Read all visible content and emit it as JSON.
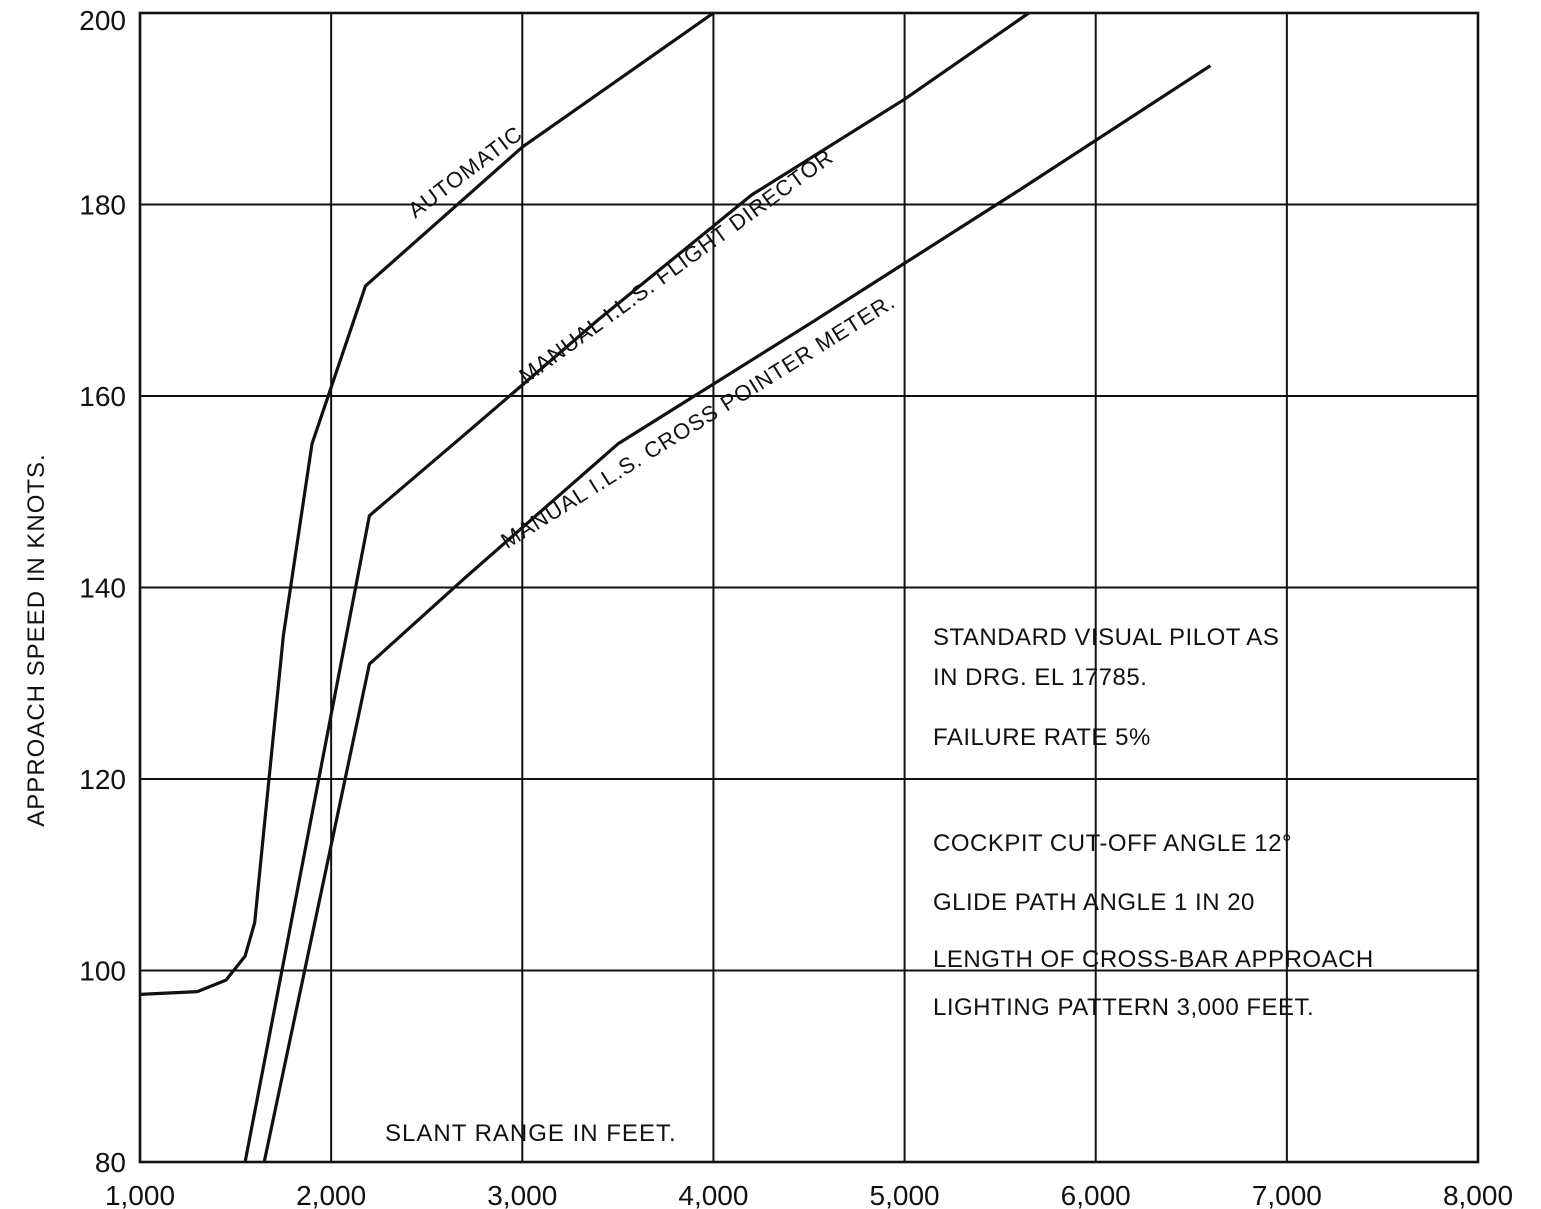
{
  "chart_data": {
    "type": "line",
    "xlabel": "SLANT RANGE IN FEET.",
    "ylabel": "APPROACH SPEED IN KNOTS.",
    "xlim": [
      1000,
      8000
    ],
    "ylim": [
      80,
      200
    ],
    "x_ticks": [
      1000,
      2000,
      3000,
      4000,
      5000,
      6000,
      7000,
      8000
    ],
    "x_tick_labels": [
      "1,000",
      "2,000",
      "3,000",
      "4,000",
      "5,000",
      "6,000",
      "7,000",
      "8,000"
    ],
    "y_ticks": [
      80,
      100,
      120,
      140,
      160,
      180,
      200
    ],
    "y_tick_labels": [
      "80",
      "100",
      "120",
      "140",
      "160",
      "180",
      "200"
    ],
    "grid": true,
    "series": [
      {
        "name": "AUTOMATIC",
        "points": [
          [
            1000,
            97.5
          ],
          [
            1300,
            97.8
          ],
          [
            1450,
            99
          ],
          [
            1550,
            101.5
          ],
          [
            1600,
            105
          ],
          [
            1650,
            115
          ],
          [
            1750,
            135
          ],
          [
            1900,
            155
          ],
          [
            2180,
            171.5
          ],
          [
            3000,
            186
          ],
          [
            4000,
            200
          ]
        ],
        "label_anchor": [
          2440,
          178.5
        ],
        "label_angle_deg": 37
      },
      {
        "name": "MANUAL I.L.S. FLIGHT DIRECTOR",
        "points": [
          [
            1550,
            80
          ],
          [
            2200,
            147.5
          ],
          [
            2700,
            156
          ],
          [
            3400,
            168
          ],
          [
            4200,
            181
          ],
          [
            5000,
            191
          ],
          [
            5650,
            200
          ]
        ],
        "label_anchor": [
          3020,
          161.2
        ],
        "label_angle_deg": 36
      },
      {
        "name": "MANUAL I.L.S. CROSS POINTER METER.",
        "points": [
          [
            1650,
            80
          ],
          [
            2200,
            132
          ],
          [
            2700,
            141
          ],
          [
            3500,
            155
          ],
          [
            4500,
            167.5
          ],
          [
            5600,
            181.5
          ],
          [
            6600,
            194.5
          ]
        ],
        "label_anchor": [
          2920,
          144
        ],
        "label_angle_deg": 32
      }
    ],
    "notes": [
      "STANDARD VISUAL PILOT AS",
      "IN DRG. EL 17785.",
      "FAILURE RATE 5%",
      "COCKPIT CUT-OFF ANGLE 12°",
      "GLIDE PATH ANGLE 1 IN 20",
      "LENGTH OF CROSS-BAR APPROACH",
      "LIGHTING PATTERN 3,000 FEET."
    ]
  }
}
